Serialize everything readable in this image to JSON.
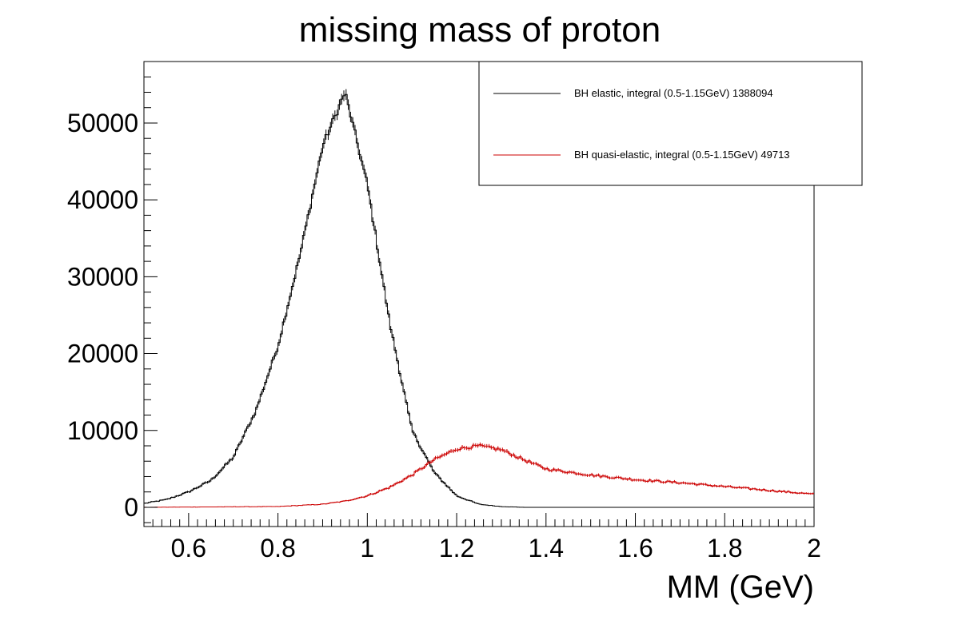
{
  "chart_data": {
    "type": "line",
    "title": "missing mass of proton",
    "xlabel": "MM (GeV)",
    "ylabel": "",
    "xlim": [
      0.5,
      2.0
    ],
    "ylim": [
      -2500,
      58000
    ],
    "xticks": [
      0.6,
      0.8,
      1.0,
      1.2,
      1.4,
      1.6,
      1.8,
      2.0
    ],
    "xtick_labels": [
      "0.6",
      "0.8",
      "1",
      "1.2",
      "1.4",
      "1.6",
      "1.8",
      "2"
    ],
    "yticks": [
      0,
      10000,
      20000,
      30000,
      40000,
      50000
    ],
    "ytick_labels": [
      "0",
      "10000",
      "20000",
      "30000",
      "40000",
      "50000"
    ],
    "grid": false,
    "legend_position": "top-right",
    "bin_width": 0.01,
    "series": [
      {
        "name": "BH elastic, integral (0.5-1.15GeV) 1388094",
        "color": "#000000",
        "x": [
          0.5,
          0.55,
          0.6,
          0.65,
          0.7,
          0.75,
          0.8,
          0.85,
          0.9,
          0.95,
          1.0,
          1.05,
          1.1,
          1.15,
          1.2,
          1.25,
          1.3,
          1.35,
          1.4,
          2.0
        ],
        "y": [
          500,
          1000,
          2000,
          3500,
          6500,
          12500,
          21000,
          33000,
          47000,
          54000,
          42000,
          24000,
          10000,
          4500,
          1500,
          400,
          100,
          0,
          0,
          0
        ]
      },
      {
        "name": "BH quasi-elastic, integral (0.5-1.15GeV) 49713",
        "color": "#cc0000",
        "x": [
          0.5,
          0.8,
          0.9,
          0.95,
          1.0,
          1.05,
          1.1,
          1.15,
          1.2,
          1.25,
          1.3,
          1.35,
          1.4,
          1.5,
          1.6,
          1.7,
          1.8,
          1.9,
          2.0
        ],
        "y": [
          0,
          100,
          400,
          800,
          1500,
          2600,
          4200,
          6200,
          7600,
          8000,
          7500,
          6200,
          5000,
          4200,
          3600,
          3200,
          2700,
          2200,
          1700
        ]
      }
    ]
  }
}
